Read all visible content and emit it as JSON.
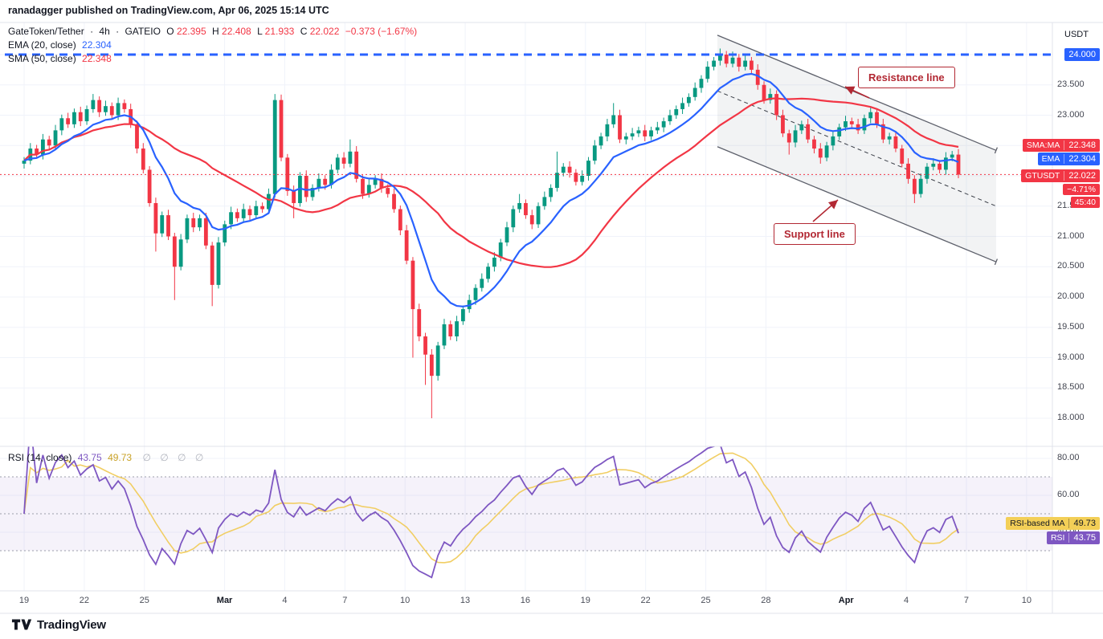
{
  "header": {
    "published_line": "ranadagger published on TradingView.com, Apr 06, 2025 15:14 UTC"
  },
  "legend": {
    "symbol": "GateToken/Tether",
    "separator": "·",
    "interval": "4h",
    "exchange": "GATEIO",
    "o_label": "O",
    "o": "22.395",
    "h_label": "H",
    "h": "22.408",
    "l_label": "L",
    "l": "21.933",
    "c_label": "C",
    "c": "22.022",
    "change": "−0.373 (−1.67%)",
    "ema": {
      "label": "EMA (20, close)",
      "value": "22.304"
    },
    "sma": {
      "label": "SMA (50, close)",
      "value": "22.348"
    }
  },
  "price_axis": {
    "unit": "USDT",
    "line_label": "24.000",
    "sma_badge": {
      "label": "SMA:MA",
      "value": "22.348"
    },
    "ema_badge": {
      "label": "EMA",
      "value": "22.304"
    },
    "symbol_badge": {
      "label": "GTUSDT",
      "value": "22.022",
      "change": "−4.71%",
      "countdown": "45:40"
    }
  },
  "annotations": {
    "resistance": "Resistance line",
    "support": "Support line"
  },
  "rsi_panel": {
    "legend_label": "RSI (14, close)",
    "value": "43.75",
    "ma_value": "49.73",
    "icons": "∅ ∅ ∅ ∅",
    "ma_badge": {
      "label": "RSI-based MA",
      "value": "49.73"
    },
    "rsi_badge": {
      "label": "RSI",
      "value": "43.75"
    }
  },
  "footer": {
    "brand": "TradingView"
  },
  "chart_data": {
    "type": "candlestick",
    "title": "GateToken/Tether 4h GATEIO",
    "ylabel": "USDT",
    "ylim": [
      17.55,
      24.55
    ],
    "grid": true,
    "x_range": [
      "Feb 19",
      "Apr 6"
    ],
    "interval": "4h",
    "last_ohlc": {
      "o": 22.395,
      "h": 22.408,
      "l": 21.933,
      "c": 22.022,
      "change_pct": -1.67
    },
    "ema20_value": 22.304,
    "sma50_value": 22.348,
    "rsi_value": 43.75,
    "rsi_ma_value": 49.73,
    "open_first": 22.2,
    "wick_default": 0.06,
    "closes": [
      22.25,
      22.45,
      22.35,
      22.6,
      22.5,
      22.75,
      22.95,
      22.85,
      23.05,
      22.9,
      23.1,
      23.25,
      23.05,
      23.15,
      23.0,
      23.2,
      23.1,
      22.85,
      22.45,
      22.1,
      21.55,
      21.05,
      21.35,
      21.0,
      20.5,
      20.95,
      21.3,
      21.15,
      21.3,
      20.85,
      20.2,
      20.9,
      21.2,
      21.4,
      21.3,
      21.45,
      21.35,
      21.5,
      21.45,
      21.7,
      23.25,
      22.3,
      21.75,
      21.55,
      22.0,
      21.65,
      21.8,
      21.95,
      21.85,
      22.1,
      22.3,
      22.2,
      22.4,
      21.95,
      21.7,
      21.85,
      21.95,
      21.8,
      21.7,
      21.45,
      21.1,
      20.6,
      19.8,
      19.35,
      19.05,
      18.7,
      19.2,
      19.55,
      19.35,
      19.6,
      19.8,
      19.95,
      20.15,
      20.3,
      20.5,
      20.65,
      20.9,
      21.15,
      21.45,
      21.55,
      21.35,
      21.2,
      21.5,
      21.65,
      21.8,
      22.05,
      22.15,
      22.05,
      21.9,
      22.0,
      22.25,
      22.5,
      22.65,
      22.85,
      23.0,
      22.6,
      22.65,
      22.7,
      22.75,
      22.65,
      22.75,
      22.8,
      22.9,
      23.0,
      23.1,
      23.2,
      23.3,
      23.45,
      23.6,
      23.8,
      23.9,
      24.0,
      23.85,
      23.95,
      23.8,
      23.9,
      23.75,
      23.5,
      23.25,
      23.35,
      23.0,
      22.7,
      22.55,
      22.75,
      22.85,
      22.6,
      22.45,
      22.3,
      22.5,
      22.65,
      22.8,
      22.9,
      22.85,
      22.75,
      22.95,
      23.05,
      22.85,
      22.6,
      22.65,
      22.45,
      22.2,
      21.95,
      21.7,
      21.95,
      22.15,
      22.2,
      22.1,
      22.3,
      22.35,
      22.02
    ],
    "high_overrides": {
      "11": 23.35,
      "40": 23.35,
      "52": 22.6,
      "79": 21.7,
      "85": 22.4,
      "94": 23.2,
      "111": 24.1,
      "113": 24.05,
      "135": 23.15
    },
    "low_overrides": {
      "21": 20.75,
      "24": 19.95,
      "30": 19.85,
      "43": 21.3,
      "62": 19.0,
      "64": 18.55,
      "65": 18.0,
      "122": 22.35,
      "127": 22.2,
      "142": 21.55
    },
    "horizontal_line": 24.0,
    "last_price": 22.022,
    "ema_period": 11,
    "sma_period": 27,
    "rsi_period": 10,
    "rsi_ma_period": 7,
    "price_ticks": [
      23.5,
      23.0,
      22.5,
      22.0,
      21.5,
      21.0,
      20.5,
      20.0,
      19.5,
      19.0,
      18.5,
      18.0
    ],
    "rsi_ticks": [
      80,
      60,
      40
    ],
    "rsi_band": [
      30,
      70
    ],
    "channel": {
      "upper": [
        [
          34.58,
          24.32
        ],
        [
          48.48,
          22.42
        ]
      ],
      "lower": [
        [
          34.58,
          22.48
        ],
        [
          48.48,
          20.58
        ]
      ]
    },
    "time_labels": [
      {
        "label": "19",
        "d": 0
      },
      {
        "label": "22",
        "d": 3
      },
      {
        "label": "25",
        "d": 6
      },
      {
        "label": "Mar",
        "d": 10,
        "major": true
      },
      {
        "label": "4",
        "d": 13
      },
      {
        "label": "7",
        "d": 16
      },
      {
        "label": "10",
        "d": 19
      },
      {
        "label": "13",
        "d": 22
      },
      {
        "label": "16",
        "d": 25
      },
      {
        "label": "19",
        "d": 28
      },
      {
        "label": "22",
        "d": 31
      },
      {
        "label": "25",
        "d": 34
      },
      {
        "label": "28",
        "d": 37
      },
      {
        "label": "Apr",
        "d": 41,
        "major": true
      },
      {
        "label": "4",
        "d": 44
      },
      {
        "label": "7",
        "d": 47
      },
      {
        "label": "10",
        "d": 50
      }
    ],
    "colors": {
      "up": "#089981",
      "down": "#f23645",
      "ema": "#2962ff",
      "sma": "#f23645",
      "rsi": "#7e57c2",
      "rsi_ma": "#f1ce63",
      "hline": "#2962ff",
      "grid": "#f0f3fa",
      "channel_line": "#5d606b",
      "annotation": "#b22833"
    }
  }
}
